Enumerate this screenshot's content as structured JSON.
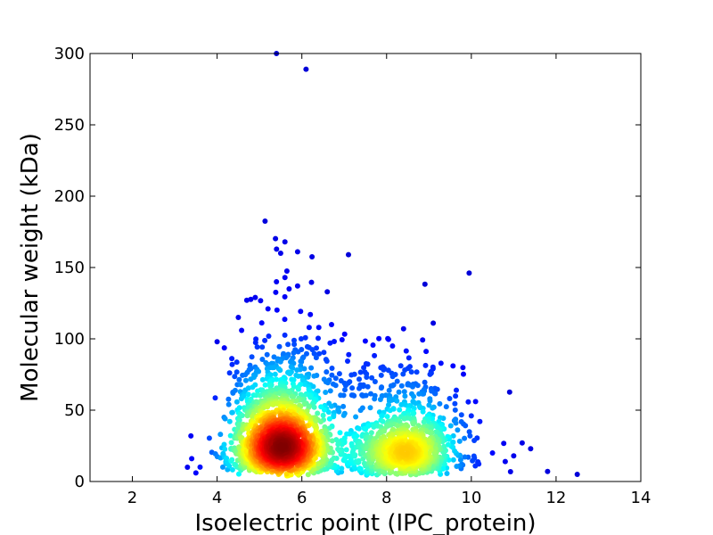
{
  "chart_data": {
    "type": "scatter",
    "title": "",
    "xlabel": "Isoelectric point (IPC_protein)",
    "ylabel": "Molecular weight (kDa)",
    "xlim": [
      1,
      14
    ],
    "ylim": [
      0,
      300
    ],
    "xticks": [
      "2",
      "4",
      "6",
      "8",
      "10",
      "12",
      "14"
    ],
    "yticks": [
      "0",
      "50",
      "100",
      "150",
      "200",
      "250",
      "300"
    ],
    "grid": false,
    "legend": "none",
    "coloring": "point density (jet colormap: blue = sparse, red = dense)",
    "colors": {
      "low_density": "#0000a8",
      "mid_density": "#00e0ff",
      "high_density": "#ff2000",
      "peak_density": "#a00000"
    },
    "clusters": [
      {
        "center_x": 5.5,
        "center_y": 30,
        "relative_size": 0.58,
        "note": "densest cluster (acidic proteins)"
      },
      {
        "center_x": 8.5,
        "center_y": 20,
        "relative_size": 0.3,
        "note": "second cluster (basic proteins)"
      },
      {
        "center_x": 7.0,
        "center_y": 25,
        "relative_size": 0.08,
        "note": "sparse bridge between clusters"
      }
    ],
    "outliers": [
      {
        "x": 5.4,
        "y": 300
      },
      {
        "x": 6.1,
        "y": 289
      },
      {
        "x": 5.6,
        "y": 168
      },
      {
        "x": 5.9,
        "y": 161
      },
      {
        "x": 7.1,
        "y": 159
      },
      {
        "x": 5.5,
        "y": 160
      },
      {
        "x": 5.6,
        "y": 143
      },
      {
        "x": 5.7,
        "y": 135
      },
      {
        "x": 5.9,
        "y": 137
      },
      {
        "x": 5.4,
        "y": 140
      },
      {
        "x": 6.6,
        "y": 133
      },
      {
        "x": 4.9,
        "y": 129
      },
      {
        "x": 4.7,
        "y": 127
      },
      {
        "x": 5.2,
        "y": 121
      },
      {
        "x": 4.5,
        "y": 115
      },
      {
        "x": 6.2,
        "y": 117
      },
      {
        "x": 9.1,
        "y": 111
      },
      {
        "x": 8.4,
        "y": 107
      },
      {
        "x": 4.0,
        "y": 98
      },
      {
        "x": 6.7,
        "y": 110
      },
      {
        "x": 6.4,
        "y": 108
      },
      {
        "x": 12.5,
        "y": 5
      },
      {
        "x": 11.8,
        "y": 7
      },
      {
        "x": 11.2,
        "y": 27
      },
      {
        "x": 11.4,
        "y": 23
      },
      {
        "x": 11.0,
        "y": 18
      },
      {
        "x": 10.8,
        "y": 14
      },
      {
        "x": 10.5,
        "y": 20
      },
      {
        "x": 3.3,
        "y": 10
      },
      {
        "x": 3.4,
        "y": 16
      },
      {
        "x": 3.5,
        "y": 6
      },
      {
        "x": 10.1,
        "y": 56
      },
      {
        "x": 10.0,
        "y": 46
      },
      {
        "x": 10.2,
        "y": 42
      }
    ]
  }
}
